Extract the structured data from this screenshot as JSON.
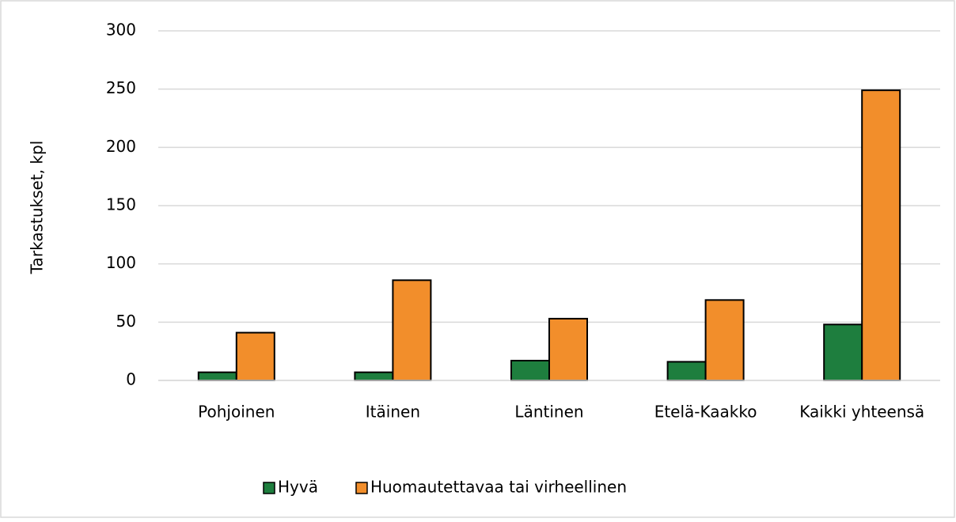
{
  "chart_data": {
    "type": "bar",
    "y_label": "Tarkastukset, kpl",
    "categories": [
      "Pohjoinen",
      "Itäinen",
      "Läntinen",
      "Etelä-Kaakko",
      "Kaikki yhteensä"
    ],
    "series": [
      {
        "name": "Hyvä",
        "color": "#1e7e3e",
        "values": [
          7,
          7,
          17,
          16,
          48
        ]
      },
      {
        "name": "Huomautettavaa tai virheellinen",
        "color": "#f28e2b",
        "values": [
          41,
          86,
          53,
          69,
          249
        ]
      }
    ],
    "ylim": [
      0,
      300
    ],
    "yticks": [
      0,
      50,
      100,
      150,
      200,
      250,
      300
    ],
    "grid": true,
    "legend": "bottom"
  }
}
